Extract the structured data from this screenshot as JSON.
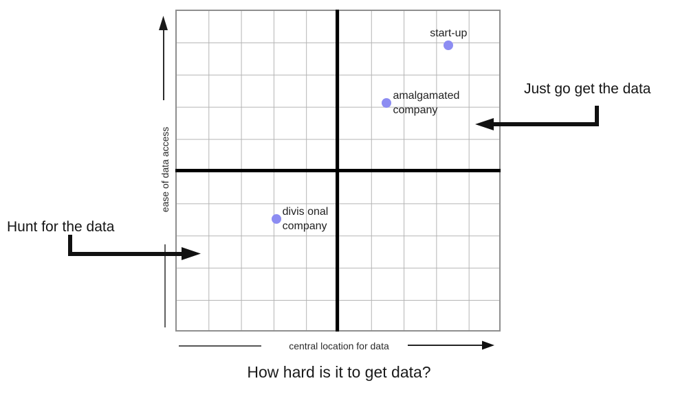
{
  "chart_data": {
    "type": "scatter",
    "title": "How hard is it to get data?",
    "xlabel": "central location for data",
    "ylabel": "ease of data access",
    "x_range_grid_units": [
      0,
      10
    ],
    "y_range_grid_units": [
      0,
      10
    ],
    "grid": true,
    "grid_cells": {
      "cols": 10,
      "rows": 10
    },
    "quadrant_divider_at": {
      "x": 5,
      "y": 5
    },
    "point_color": "#8c8cf2",
    "points": [
      {
        "id": "start-up",
        "x": 8.4,
        "y": 8.9,
        "label_lines": [
          "start-up"
        ],
        "label_side": "above"
      },
      {
        "id": "amalgamated-company",
        "x": 6.5,
        "y": 7.1,
        "label_lines": [
          "amalgamated",
          "company"
        ],
        "label_side": "right"
      },
      {
        "id": "divisional-company",
        "x": 3.1,
        "y": 3.5,
        "label_lines": [
          "divis onal",
          "company"
        ],
        "label_side": "right"
      }
    ],
    "annotations": [
      {
        "id": "hunt-for-the-data",
        "text": "Hunt for the data",
        "quadrant": "lower-left"
      },
      {
        "id": "just-go-get-the-data",
        "text": "Just go get the data",
        "quadrant": "upper-right"
      }
    ]
  },
  "colors": {
    "background": "#ffffff",
    "grid_line": "#b4b4b4",
    "grid_border": "#8e8e8e",
    "divider": "#000000",
    "text": "#1f1f1f"
  }
}
